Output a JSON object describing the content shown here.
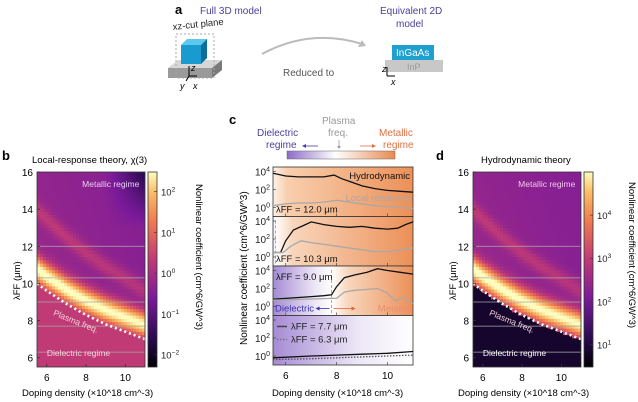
{
  "panel_a": {
    "label": "a",
    "left_title": "Full 3D model",
    "cut_plane_label": "xz-cut plane",
    "arrow_label": "Reduced to",
    "right_title_line1": "Equivalent 2D",
    "right_title_line2": "model",
    "top_material": "InGaAs",
    "bottom_material": "InP",
    "axes_3d": [
      "z",
      "y",
      "x"
    ],
    "axes_2d": [
      "z",
      "x"
    ],
    "title_color": "#4a3f9a",
    "ingaas_color": "#1fa0d0",
    "inp_color": "#bfbfbf"
  },
  "chart_data": [
    {
      "id": "b",
      "type": "heatmap",
      "label": "b",
      "title": "Local-response theory, χ(3)",
      "xlabel": "Doping density (×10^18 cm^-3)",
      "ylabel": "λFF (μm)",
      "xlim": [
        5.5,
        11
      ],
      "ylim": [
        5.5,
        16
      ],
      "xticks": [
        6,
        8,
        10
      ],
      "yticks": [
        6,
        8,
        10,
        12,
        14,
        16
      ],
      "colorbar": {
        "label": "Nonlinear coefficient (cm^6/GW^3)",
        "scale": "log",
        "range": [
          0.005,
          300
        ],
        "ticks": [
          "10^-2",
          "10^-1",
          "10^0",
          "10^1",
          "10^2"
        ]
      },
      "annotations": [
        "Metallic regime",
        "Plasma freq.",
        "Dielectric regime"
      ],
      "horizontal_lines_um": [
        12.0,
        10.3,
        9.0,
        7.7,
        6.3
      ],
      "plasma_curve": {
        "x": [
          5.5,
          6,
          7,
          8,
          9,
          10,
          11
        ],
        "y": [
          10.0,
          9.6,
          8.9,
          8.3,
          7.8,
          7.4,
          7.0
        ]
      }
    },
    {
      "id": "c",
      "type": "line",
      "label": "c",
      "xlabel": "Doping density (×10^18 cm^-3)",
      "ylabel": "Nonlinear coefficient (cm^6/GW^3)",
      "xlim": [
        5.5,
        11
      ],
      "xticks": [
        6,
        8,
        10
      ],
      "ytick_labels": [
        "10^0",
        "10^2",
        "10^4"
      ],
      "regime_bar": {
        "left": "Dielectric regime",
        "middle": "Plasma freq.",
        "right": "Metallic regime",
        "left_color": "#4a3f9a",
        "middle_color": "#9a9a9a",
        "right_color": "#e07040"
      },
      "legend": [
        "Hydrodynamic",
        "Local response"
      ],
      "subplots": [
        {
          "lambda_label": "λFF = 12.0 μm",
          "plasma_x": 5.3,
          "series": [
            {
              "name": "Hydrodynamic",
              "x": [
                5.5,
                6,
                6.5,
                7,
                7.5,
                7.9,
                8.2,
                8.6,
                9,
                9.5,
                10,
                10.5,
                11
              ],
              "log10": [
                3.8,
                3.5,
                3.4,
                3.4,
                3.4,
                3.6,
                3.2,
                2.8,
                2.4,
                2.1,
                1.9,
                1.8,
                1.7
              ]
            },
            {
              "name": "Local response",
              "x": [
                5.5,
                6,
                6.5,
                7,
                7.5,
                8,
                8.5,
                9,
                9.5,
                10,
                10.5,
                11
              ],
              "log10": [
                0.2,
                0.4,
                0.5,
                0.5,
                0.6,
                0.8,
                0.6,
                0.4,
                0.2,
                0.1,
                0.0,
                -0.1
              ]
            }
          ]
        },
        {
          "lambda_label": "λFF = 10.3 μm",
          "plasma_x": 5.6,
          "series": [
            {
              "name": "Hydrodynamic",
              "x": [
                5.5,
                5.8,
                6.0,
                6.3,
                6.7,
                7,
                7.5,
                8,
                8.5,
                9,
                9.5,
                10,
                10.4,
                10.7,
                11
              ],
              "log10": [
                0.5,
                0.5,
                1.8,
                3.0,
                3.5,
                3.9,
                3.6,
                3.4,
                3.3,
                3.4,
                3.2,
                3.1,
                3.2,
                3.6,
                3.9
              ]
            },
            {
              "name": "Local response",
              "x": [
                5.5,
                5.9,
                6.2,
                6.6,
                7,
                7.5,
                8,
                8.5,
                9,
                9.5,
                10,
                10.5,
                11
              ],
              "log10": [
                0.5,
                0.5,
                1.2,
                1.8,
                1.6,
                1.4,
                1.2,
                1.0,
                0.8,
                0.6,
                0.6,
                0.8,
                1.0
              ]
            }
          ]
        },
        {
          "lambda_label": "λFF = 9.0 μm",
          "plasma_x": 7.8,
          "series": [
            {
              "name": "Hydrodynamic",
              "x": [
                5.5,
                6,
                6.5,
                7,
                7.5,
                7.8,
                8,
                8.3,
                8.7,
                9.2,
                9.6,
                10,
                10.5,
                11
              ],
              "log10": [
                0.8,
                0.9,
                1.0,
                1.1,
                1.2,
                1.3,
                2.2,
                3.2,
                3.5,
                3.8,
                4.2,
                4.0,
                3.8,
                3.6
              ]
            },
            {
              "name": "Local response",
              "x": [
                5.5,
                7.8,
                8.0,
                8.3,
                8.7,
                9.2,
                9.6,
                10,
                10.3,
                10.6,
                11
              ],
              "log10": [
                0.7,
                0.9,
                0.9,
                1.6,
                1.8,
                1.9,
                2.0,
                1.5,
                0.6,
                1.0,
                0.3
              ]
            }
          ],
          "annotations": [
            "Dielectric",
            "Metallic"
          ]
        },
        {
          "lambda_label_solid": "λFF = 7.7 μm",
          "lambda_label_dotted": "λFF = 6.3 μm",
          "plasma_x": 12,
          "series": [
            {
              "name": "λFF = 7.7 μm",
              "style": "solid",
              "x": [
                5.5,
                7,
                8,
                9,
                10,
                11
              ],
              "log10": [
                -0.2,
                0.0,
                0.1,
                0.2,
                0.3,
                0.5
              ]
            },
            {
              "name": "λFF = 6.3 μm",
              "style": "dotted",
              "x": [
                5.5,
                7,
                8,
                9,
                10,
                11
              ],
              "log10": [
                -0.4,
                -0.3,
                -0.2,
                -0.1,
                0.0,
                0.1
              ]
            }
          ]
        }
      ],
      "ylim_log10": [
        -1,
        4.5
      ]
    },
    {
      "id": "d",
      "type": "heatmap",
      "label": "d",
      "title": "Hydrodynamic theory",
      "xlabel": "Doping density (×10^18 cm^-3)",
      "ylabel": "λFF (μm)",
      "xlim": [
        5.5,
        11
      ],
      "ylim": [
        5.5,
        16
      ],
      "xticks": [
        6,
        8,
        10
      ],
      "yticks": [
        6,
        8,
        10,
        12,
        14,
        16
      ],
      "colorbar": {
        "label": "Nonlinear coefficient (cm^6/GW^3)",
        "scale": "log",
        "range": [
          3,
          100000
        ],
        "ticks": [
          "10^1",
          "10^2",
          "10^3",
          "10^4"
        ]
      },
      "annotations": [
        "Metallic regime",
        "Plasma freq.",
        "Dielectric regime"
      ],
      "horizontal_lines_um": [
        12.0,
        10.3,
        9.0,
        7.7,
        6.3
      ],
      "plasma_curve": {
        "x": [
          5.5,
          6,
          7,
          8,
          9,
          10,
          11
        ],
        "y": [
          10.0,
          9.6,
          8.9,
          8.3,
          7.8,
          7.4,
          7.0
        ]
      }
    }
  ]
}
